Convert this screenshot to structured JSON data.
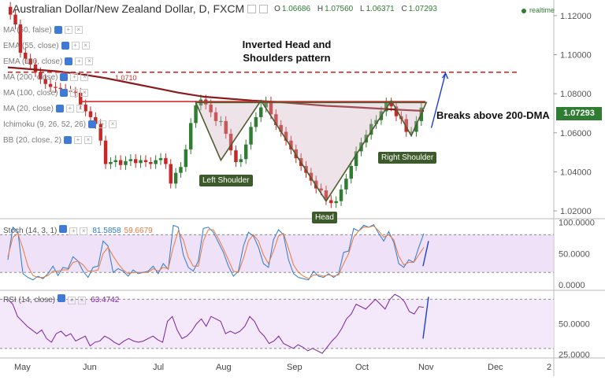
{
  "header": {
    "title": "Australian Dollar/New Zealand Dollar, D, FXCM",
    "ohlc": [
      {
        "label": "O",
        "value": "1.06686"
      },
      {
        "label": "H",
        "value": "1.07560"
      },
      {
        "label": "L",
        "value": "1.06371"
      },
      {
        "label": "C",
        "value": "1.07293"
      }
    ],
    "realtime": "realtime"
  },
  "indicators": [
    {
      "name": "MA (60, false)"
    },
    {
      "name": "EMA (55, close)"
    },
    {
      "name": "EMA (110, close)"
    },
    {
      "name": "MA (200, close)"
    },
    {
      "name": "MA (100, close)"
    },
    {
      "name": "MA (20, close)"
    },
    {
      "name": "Ichimoku (9, 26, 52, 26)"
    },
    {
      "name": "BB (20, close, 2)"
    }
  ],
  "annotations": {
    "pattern_title": "Inverted Head and Shoulders pattern",
    "break_text": "Breaks above 200-DMA",
    "left_shoulder": "Left Shoulder",
    "right_shoulder": "Right Shoulder",
    "head": "Head",
    "level_label": "1.0710"
  },
  "price_tag": "1.07293",
  "colors": {
    "up_candle": "#2e7d32",
    "down_candle": "#c62828",
    "ma200": "#8b1a1a",
    "resistance": "#d32f2f",
    "pattern_line": "#4e5d2f",
    "stoch_k": "#2a7bd0",
    "stoch_d": "#e8783a",
    "rsi": "#7b1fa2",
    "arrow": "#1a3fd6",
    "osc_band": "#e8d5f5"
  },
  "stoch": {
    "label": "Stoch (14, 3, 1)",
    "k": "81.5858",
    "d": "59.6679"
  },
  "rsi": {
    "label": "RSI (14, close)",
    "value": "63.4742"
  },
  "chart_data": [
    {
      "type": "candlestick",
      "title": "Australian Dollar/New Zealand Dollar, D, FXCM",
      "x_ticks": [
        "May",
        "Jun",
        "Jul",
        "Aug",
        "Sep",
        "Oct",
        "Nov",
        "Dec",
        "2"
      ],
      "y_ticks": [
        "1.12000",
        "1.10000",
        "1.08000",
        "1.06000",
        "1.04000",
        "1.02000"
      ],
      "ylim": [
        1.016,
        1.128
      ],
      "series": [
        {
          "name": "Price",
          "values": [
            1.1205,
            1.1155,
            1.101,
            1.098,
            1.095,
            1.091,
            1.0875,
            1.085,
            1.0835,
            1.083,
            1.0825,
            1.0815,
            1.081,
            1.0805,
            1.0745,
            1.071,
            1.068,
            1.0645,
            1.056,
            1.044,
            1.045,
            1.046,
            1.0435,
            1.0455,
            1.0465,
            1.0445,
            1.046,
            1.045,
            1.044,
            1.046,
            1.047,
            1.044,
            1.034,
            1.0395,
            1.0425,
            1.0515,
            1.065,
            1.074,
            1.077,
            1.0745,
            1.0705,
            1.066,
            1.066,
            1.0595,
            1.051,
            1.045,
            1.0465,
            1.054,
            1.063,
            1.068,
            1.073,
            1.076,
            1.0695,
            1.064,
            1.0605,
            1.056,
            1.0515,
            1.047,
            1.043,
            1.0395,
            1.0355,
            1.0315,
            1.0305,
            1.0255,
            1.024,
            1.025,
            1.031,
            1.0365,
            1.043,
            1.0505,
            1.055,
            1.059,
            1.0645,
            1.0665,
            1.071,
            1.0755,
            1.0735,
            1.0685,
            1.067,
            1.0605,
            1.0605,
            1.066,
            1.0729
          ]
        },
        {
          "name": "MA 200",
          "values": [
            1.0935,
            1.0925,
            1.0915,
            1.09,
            1.088,
            1.0855,
            1.083,
            1.0805,
            1.0785,
            1.0775,
            1.0765,
            1.0758,
            1.0748,
            1.0738,
            1.0732,
            1.0725,
            1.0718,
            1.0712
          ]
        }
      ],
      "levels": [
        1.091,
        1.076
      ],
      "pattern": [
        "Left Shoulder",
        "Head",
        "Right Shoulder"
      ]
    },
    {
      "type": "line",
      "title": "Stoch (14, 3, 1)",
      "y_ticks": [
        "100.0000",
        "50.0000",
        "0.0000"
      ],
      "ylim": [
        -6,
        103
      ],
      "series": [
        {
          "name": "%K",
          "values": [
            40,
            92,
            85,
            18,
            12,
            8,
            14,
            10,
            18,
            30,
            15,
            28,
            26,
            45,
            38,
            22,
            12,
            28,
            30,
            70,
            62,
            20,
            26,
            22,
            14,
            24,
            18,
            20,
            22,
            30,
            18,
            34,
            25,
            95,
            92,
            48,
            28,
            22,
            38,
            90,
            92,
            84,
            68,
            52,
            30,
            14,
            22,
            62,
            84,
            78,
            60,
            34,
            28,
            72,
            88,
            80,
            40,
            18,
            12,
            10,
            8,
            22,
            14,
            12,
            18,
            12,
            18,
            52,
            54,
            90,
            86,
            95,
            92,
            96,
            82,
            70,
            85,
            68,
            34,
            28,
            40,
            36,
            60,
            82
          ]
        },
        {
          "name": "%D",
          "values": [
            45,
            76,
            82,
            58,
            30,
            15,
            12,
            12,
            15,
            22,
            22,
            24,
            24,
            36,
            38,
            32,
            22,
            22,
            24,
            50,
            60,
            46,
            34,
            24,
            18,
            20,
            20,
            20,
            20,
            26,
            22,
            28,
            26,
            60,
            86,
            72,
            44,
            30,
            30,
            70,
            88,
            88,
            74,
            58,
            40,
            22,
            20,
            42,
            70,
            80,
            70,
            48,
            34,
            54,
            78,
            82,
            58,
            32,
            20,
            14,
            10,
            16,
            16,
            14,
            16,
            14,
            16,
            34,
            50,
            76,
            86,
            92,
            92,
            94,
            86,
            76,
            80,
            72,
            46,
            32,
            36,
            36,
            48,
            59.6679
          ]
        }
      ]
    },
    {
      "type": "line",
      "title": "RSI (14, close)",
      "y_ticks": [
        "50.0000",
        "25.0000"
      ],
      "ylim": [
        23.5,
        76
      ],
      "series": [
        {
          "name": "RSI",
          "values": [
            70,
            66,
            56,
            52,
            48,
            45,
            42,
            45,
            38,
            35,
            42,
            44,
            40,
            42,
            36,
            38,
            40,
            32,
            35,
            36,
            40,
            38,
            35,
            33,
            36,
            38,
            36,
            35,
            36,
            38,
            40,
            37,
            35,
            52,
            56,
            45,
            38,
            40,
            44,
            50,
            54,
            48,
            56,
            54,
            52,
            42,
            44,
            42,
            44,
            48,
            56,
            52,
            44,
            40,
            34,
            36,
            40,
            34,
            32,
            30,
            33,
            31,
            28,
            30,
            28,
            26,
            31,
            36,
            40,
            46,
            54,
            58,
            66,
            64,
            62,
            66,
            70,
            66,
            62,
            70,
            74,
            72,
            68,
            60,
            58,
            64,
            63.4742
          ]
        }
      ]
    }
  ]
}
